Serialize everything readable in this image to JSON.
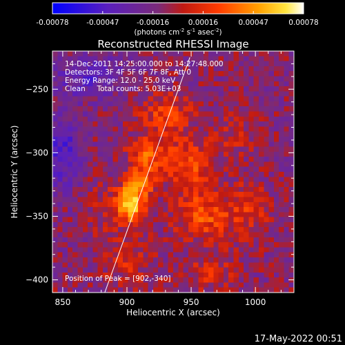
{
  "chart_data": {
    "type": "heatmap",
    "title": "Reconstructed RHESSI Image",
    "xlabel": "Heliocentric X (arcsec)",
    "ylabel": "Heliocentric Y (arcsec)",
    "xlim": [
      842,
      1030
    ],
    "ylim": [
      -410,
      -220
    ],
    "x_ticks": [
      850,
      900,
      950,
      1000
    ],
    "y_ticks": [
      -400,
      -350,
      -300,
      -250
    ],
    "colorbar": {
      "ticks": [
        "-0.00078",
        "-0.00047",
        "-0.00016",
        "0.00016",
        "0.00047",
        "0.00078"
      ],
      "range": [
        -0.00078,
        0.00078
      ],
      "units_label": "(photons cm",
      "units_exp1": "-2",
      "units_mid": " s",
      "units_exp2": "-1",
      "units_mid2": " asec",
      "units_exp3": "-2",
      "units_end": ")"
    },
    "annotations": [
      "14-Dec-2011 14:25:00.000 to 14:27:48.000",
      "Detectors: 3F 4F 5F 6F 7F 8F, Att 0",
      "Energy Range: 12.0 - 25.0 keV",
      "Clean     Total counts: 5.03E+03"
    ],
    "peak_label": "Position of Peak = [902,-340]",
    "peak": [
      902,
      -340
    ],
    "limb_line": [
      [
        882,
        -412
      ],
      [
        949,
        -225
      ]
    ],
    "sources": [
      {
        "x": 902,
        "y": -340,
        "amp": 0.00078,
        "sx": 8,
        "sy": 10
      },
      {
        "x": 912,
        "y": -322,
        "amp": 0.0005,
        "sx": 7,
        "sy": 7
      },
      {
        "x": 915,
        "y": -300,
        "amp": 0.0004,
        "sx": 10,
        "sy": 9
      },
      {
        "x": 930,
        "y": -270,
        "amp": 0.00032,
        "sx": 14,
        "sy": 12
      },
      {
        "x": 948,
        "y": -310,
        "amp": 0.00034,
        "sx": 15,
        "sy": 16
      },
      {
        "x": 960,
        "y": -350,
        "amp": 0.00036,
        "sx": 16,
        "sy": 14
      },
      {
        "x": 995,
        "y": -345,
        "amp": 0.00022,
        "sx": 12,
        "sy": 16
      },
      {
        "x": 900,
        "y": -385,
        "amp": 0.0002,
        "sx": 14,
        "sy": 14
      },
      {
        "x": 965,
        "y": -395,
        "amp": 0.00022,
        "sx": 14,
        "sy": 10
      },
      {
        "x": 985,
        "y": -285,
        "amp": 0.00016,
        "sx": 12,
        "sy": 12
      },
      {
        "x": 880,
        "y": -345,
        "amp": 0.0001,
        "sx": 8,
        "sy": 20
      },
      {
        "x": 850,
        "y": -300,
        "amp": -0.00035,
        "sx": 10,
        "sy": 20
      },
      {
        "x": 870,
        "y": -240,
        "amp": -0.0003,
        "sx": 18,
        "sy": 12
      }
    ],
    "noise_amplitude": 0.00016,
    "grid": false
  },
  "timestamp": "17-May-2022 00:51"
}
